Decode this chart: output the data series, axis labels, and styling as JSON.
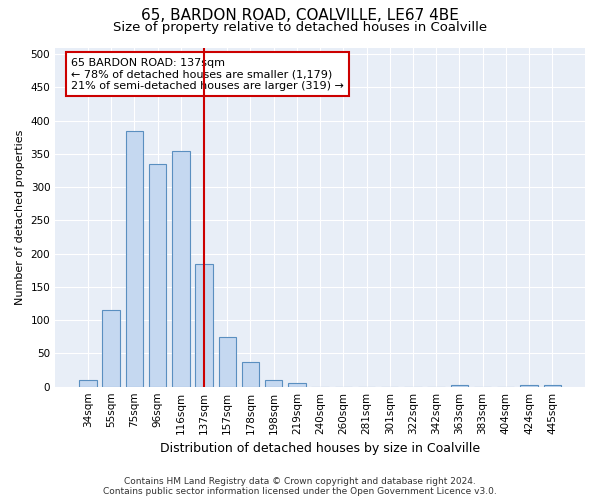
{
  "title1": "65, BARDON ROAD, COALVILLE, LE67 4BE",
  "title2": "Size of property relative to detached houses in Coalville",
  "xlabel": "Distribution of detached houses by size in Coalville",
  "ylabel": "Number of detached properties",
  "categories": [
    "34sqm",
    "55sqm",
    "75sqm",
    "96sqm",
    "116sqm",
    "137sqm",
    "157sqm",
    "178sqm",
    "198sqm",
    "219sqm",
    "240sqm",
    "260sqm",
    "281sqm",
    "301sqm",
    "322sqm",
    "342sqm",
    "363sqm",
    "383sqm",
    "404sqm",
    "424sqm",
    "445sqm"
  ],
  "values": [
    10,
    115,
    385,
    335,
    355,
    185,
    75,
    37,
    10,
    5,
    0,
    0,
    0,
    0,
    0,
    0,
    2,
    0,
    0,
    2,
    2
  ],
  "bar_color": "#c5d8f0",
  "bar_edge_color": "#5a8fc0",
  "vline_x_index": 5,
  "vline_color": "#cc0000",
  "annotation_text": "65 BARDON ROAD: 137sqm\n← 78% of detached houses are smaller (1,179)\n21% of semi-detached houses are larger (319) →",
  "annotation_box_color": "#ffffff",
  "annotation_box_edge_color": "#cc0000",
  "ylim": [
    0,
    510
  ],
  "yticks": [
    0,
    50,
    100,
    150,
    200,
    250,
    300,
    350,
    400,
    450,
    500
  ],
  "background_color": "#e8eef7",
  "footnote": "Contains HM Land Registry data © Crown copyright and database right 2024.\nContains public sector information licensed under the Open Government Licence v3.0.",
  "title1_fontsize": 11,
  "title2_fontsize": 9.5,
  "xlabel_fontsize": 9,
  "ylabel_fontsize": 8,
  "tick_fontsize": 7.5,
  "annotation_fontsize": 8,
  "footnote_fontsize": 6.5
}
